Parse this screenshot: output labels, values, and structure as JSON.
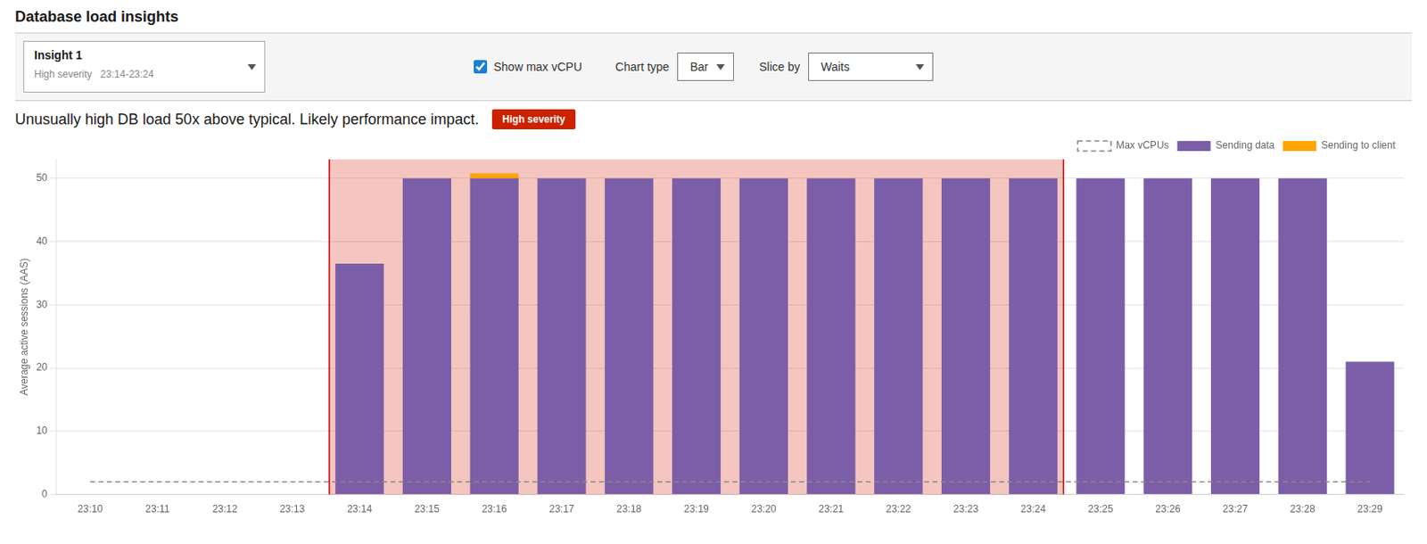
{
  "chart_data": {
    "type": "bar",
    "title": "Database load insights",
    "subtitle": "Unusually high DB load 50x above typical. Likely performance impact.",
    "annotations": [
      {
        "type": "span",
        "from": "23:14",
        "to": "23:24",
        "color": "#F5C6C0",
        "edge_color": "#CC0000"
      },
      {
        "type": "text",
        "text": "Insight 1"
      },
      {
        "type": "text",
        "text": "High severity   23:14-23:24"
      },
      {
        "type": "text",
        "text": "Show max vCPU"
      },
      {
        "type": "text",
        "text": "Chart type"
      },
      {
        "type": "text",
        "text": "Bar"
      },
      {
        "type": "text",
        "text": "Slice by"
      },
      {
        "type": "text",
        "text": "Waits"
      },
      {
        "type": "text",
        "text": "High severity"
      }
    ],
    "ylabel": "Average active sessions (AAS)",
    "categories": [
      "23:10",
      "23:11",
      "23:12",
      "23:13",
      "23:14",
      "23:15",
      "23:16",
      "23:17",
      "23:18",
      "23:19",
      "23:20",
      "23:21",
      "23:22",
      "23:23",
      "23:24",
      "23:25",
      "23:26",
      "23:27",
      "23:28",
      "23:29"
    ],
    "series": [
      {
        "name": "Sending data",
        "color": "#7B5EA7",
        "values": [
          0,
          0,
          0,
          0,
          36.5,
          50,
          50,
          50,
          50,
          50,
          50,
          50,
          50,
          50,
          50,
          50,
          50,
          50,
          50,
          21
        ]
      },
      {
        "name": "Sending to client",
        "color": "#FFA500",
        "values": [
          0,
          0,
          0,
          0,
          0,
          0,
          0.8,
          0,
          0,
          0,
          0,
          0,
          0,
          0,
          0,
          0,
          0,
          0,
          0,
          0
        ]
      },
      {
        "name": "Max vCPUs",
        "type": "line",
        "line_style": "dashed",
        "color": "#888888",
        "values": [
          2,
          2,
          2,
          2,
          2,
          2,
          2,
          2,
          2,
          2,
          2,
          2,
          2,
          2,
          2,
          2,
          2,
          2,
          2,
          2
        ]
      }
    ],
    "stacked": true,
    "ylim": [
      0,
      53
    ],
    "yticks": [
      0,
      10,
      20,
      30,
      40,
      50
    ],
    "grid": true,
    "legend": "upper right"
  }
}
